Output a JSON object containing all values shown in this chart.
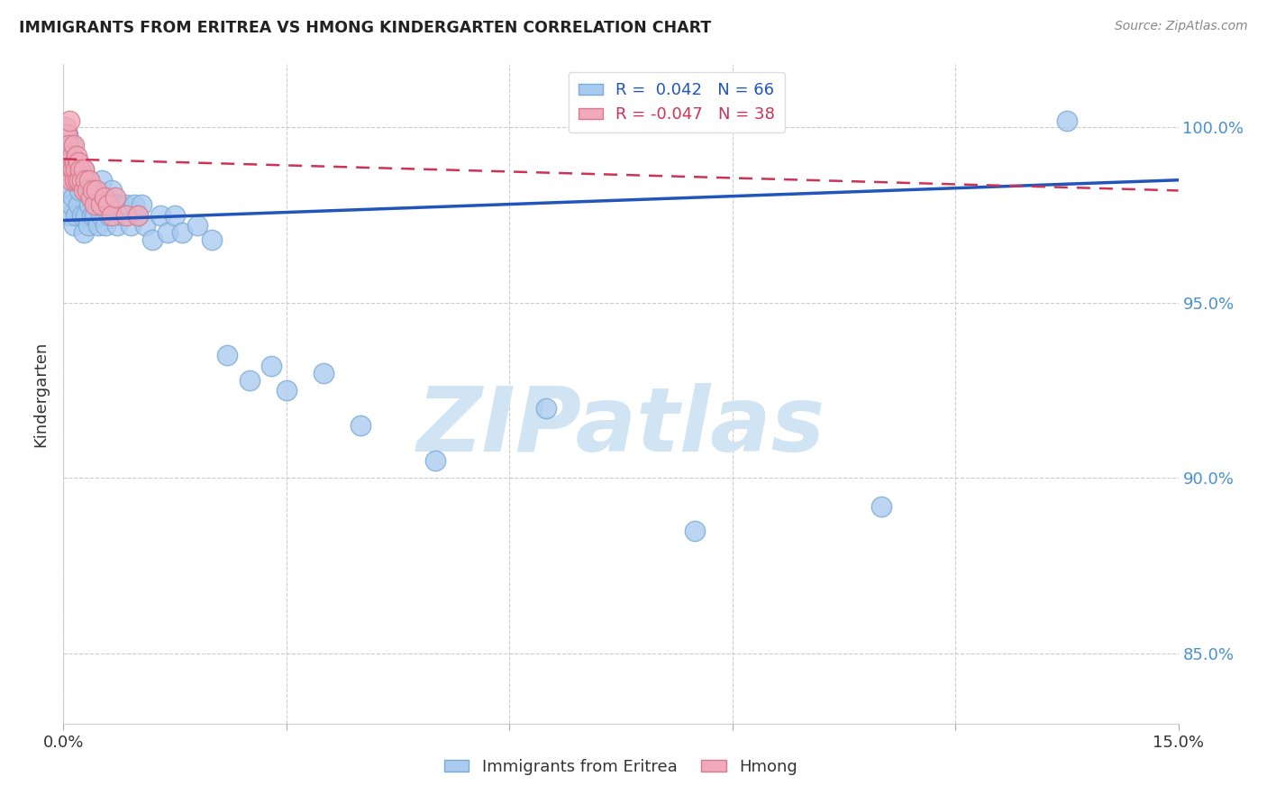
{
  "title": "IMMIGRANTS FROM ERITREA VS HMONG KINDERGARTEN CORRELATION CHART",
  "source": "Source: ZipAtlas.com",
  "ylabel": "Kindergarten",
  "ytick_values": [
    85.0,
    90.0,
    95.0,
    100.0
  ],
  "xmin": 0.0,
  "xmax": 15.0,
  "ymin": 83.0,
  "ymax": 101.8,
  "legend_eritrea_R": "R =  0.042",
  "legend_eritrea_N": "N = 66",
  "legend_hmong_R": "R = -0.047",
  "legend_hmong_N": "N = 38",
  "eritrea_color": "#aacbf0",
  "eritrea_edge": "#7aaad4",
  "hmong_color": "#f0aabb",
  "hmong_edge": "#d47a8a",
  "trendline_eritrea_color": "#2255bb",
  "trendline_hmong_color": "#cc3355",
  "background_color": "#ffffff",
  "grid_color": "#cccccc",
  "watermark_text": "ZIPatlas",
  "watermark_color": "#d0e4f4",
  "eritrea_x": [
    0.05,
    0.06,
    0.07,
    0.08,
    0.09,
    0.1,
    0.11,
    0.12,
    0.13,
    0.14,
    0.15,
    0.17,
    0.18,
    0.2,
    0.22,
    0.25,
    0.27,
    0.28,
    0.3,
    0.32,
    0.33,
    0.35,
    0.37,
    0.38,
    0.4,
    0.42,
    0.43,
    0.45,
    0.47,
    0.48,
    0.5,
    0.52,
    0.55,
    0.57,
    0.6,
    0.62,
    0.65,
    0.67,
    0.7,
    0.72,
    0.75,
    0.8,
    0.85,
    0.9,
    0.95,
    1.0,
    1.05,
    1.1,
    1.2,
    1.3,
    1.4,
    1.5,
    1.6,
    1.8,
    2.0,
    2.2,
    2.5,
    2.8,
    3.0,
    3.5,
    4.0,
    5.0,
    6.5,
    8.5,
    11.0,
    13.5
  ],
  "eritrea_y": [
    99.5,
    99.8,
    98.8,
    97.5,
    99.0,
    98.2,
    97.8,
    99.5,
    98.0,
    97.2,
    98.5,
    97.5,
    99.0,
    97.8,
    98.2,
    97.5,
    98.8,
    97.0,
    97.5,
    98.5,
    97.2,
    97.8,
    98.0,
    97.5,
    98.2,
    97.5,
    98.0,
    97.8,
    97.2,
    98.0,
    97.5,
    98.5,
    97.8,
    97.2,
    98.0,
    97.5,
    98.2,
    97.8,
    97.5,
    97.2,
    97.8,
    97.5,
    97.8,
    97.2,
    97.8,
    97.5,
    97.8,
    97.2,
    96.8,
    97.5,
    97.0,
    97.5,
    97.0,
    97.2,
    96.8,
    93.5,
    92.8,
    93.2,
    92.5,
    93.0,
    91.5,
    90.5,
    92.0,
    88.5,
    89.2,
    100.2
  ],
  "hmong_x": [
    0.02,
    0.03,
    0.04,
    0.05,
    0.06,
    0.07,
    0.08,
    0.09,
    0.1,
    0.11,
    0.12,
    0.13,
    0.14,
    0.15,
    0.16,
    0.17,
    0.18,
    0.19,
    0.2,
    0.22,
    0.23,
    0.25,
    0.27,
    0.28,
    0.3,
    0.32,
    0.35,
    0.37,
    0.4,
    0.42,
    0.45,
    0.5,
    0.55,
    0.6,
    0.65,
    0.7,
    0.85,
    1.0
  ],
  "hmong_y": [
    99.5,
    100.0,
    99.8,
    99.2,
    98.8,
    99.5,
    100.2,
    99.0,
    98.8,
    98.5,
    99.2,
    98.8,
    99.5,
    98.5,
    99.0,
    98.8,
    99.2,
    98.5,
    99.0,
    98.5,
    98.8,
    98.5,
    98.2,
    98.8,
    98.5,
    98.2,
    98.5,
    98.0,
    98.2,
    97.8,
    98.2,
    97.8,
    98.0,
    97.8,
    97.5,
    98.0,
    97.5,
    97.5
  ],
  "trendline_eritrea_x0": 0.0,
  "trendline_eritrea_y0": 97.35,
  "trendline_eritrea_x1": 15.0,
  "trendline_eritrea_y1": 98.5,
  "trendline_hmong_x0": 0.0,
  "trendline_hmong_y0": 99.1,
  "trendline_hmong_x1": 15.0,
  "trendline_hmong_y1": 98.2
}
